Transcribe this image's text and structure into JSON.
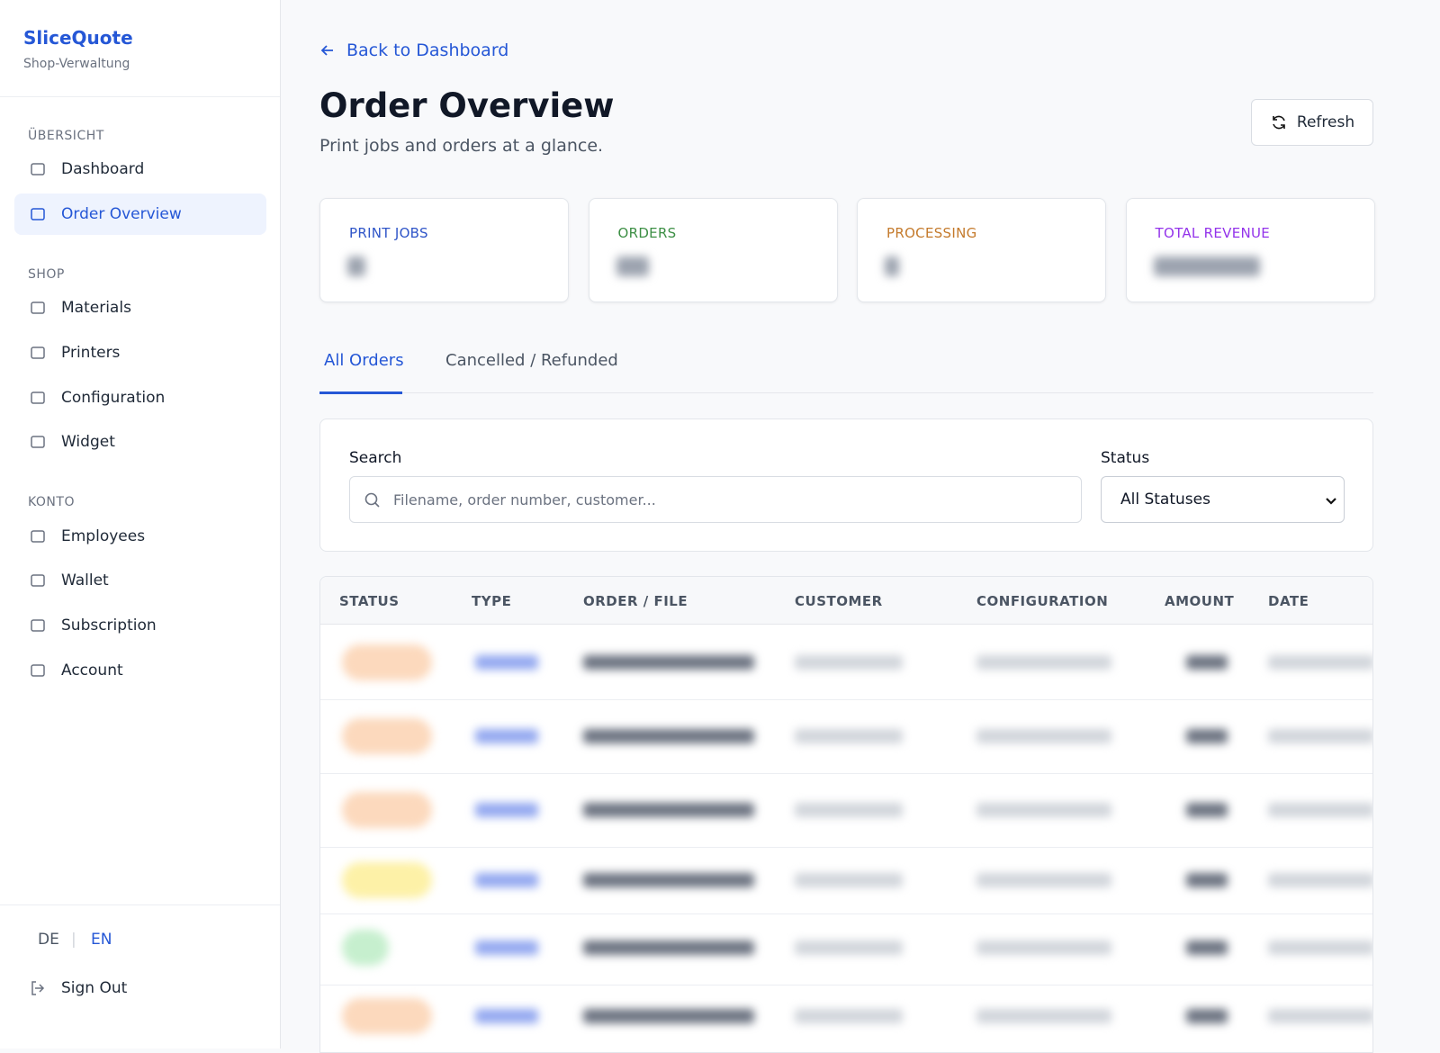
{
  "sidebar": {
    "brand": "SliceQuote",
    "subtitle": "Shop-Verwaltung",
    "sections": [
      {
        "heading": "ÜBERSICHT",
        "items": [
          "Dashboard",
          "Order Overview"
        ]
      },
      {
        "heading": "SHOP",
        "items": [
          "Materials",
          "Printers",
          "Configuration",
          "Widget"
        ]
      },
      {
        "heading": "KONTO",
        "items": [
          "Employees",
          "Wallet",
          "Subscription",
          "Account"
        ]
      }
    ],
    "languages": [
      "DE",
      "EN"
    ],
    "language_separator": "|",
    "sign_out": "Sign Out"
  },
  "header": {
    "back_link": "Back to Dashboard",
    "title": "Order Overview",
    "subtitle": "Print jobs and orders at a glance.",
    "refresh": "Refresh"
  },
  "stats": [
    "PRINT JOBS",
    "ORDERS",
    "PROCESSING",
    "TOTAL REVENUE"
  ],
  "tabs": [
    "All Orders",
    "Cancelled / Refunded"
  ],
  "filters": {
    "search_label": "Search",
    "search_placeholder": "Filename, order number, customer...",
    "status_label": "Status",
    "status_value": "All Statuses"
  },
  "table": {
    "columns": [
      "STATUS",
      "TYPE",
      "ORDER / FILE",
      "CUSTOMER",
      "CONFIGURATION",
      "AMOUNT",
      "DATE"
    ]
  }
}
